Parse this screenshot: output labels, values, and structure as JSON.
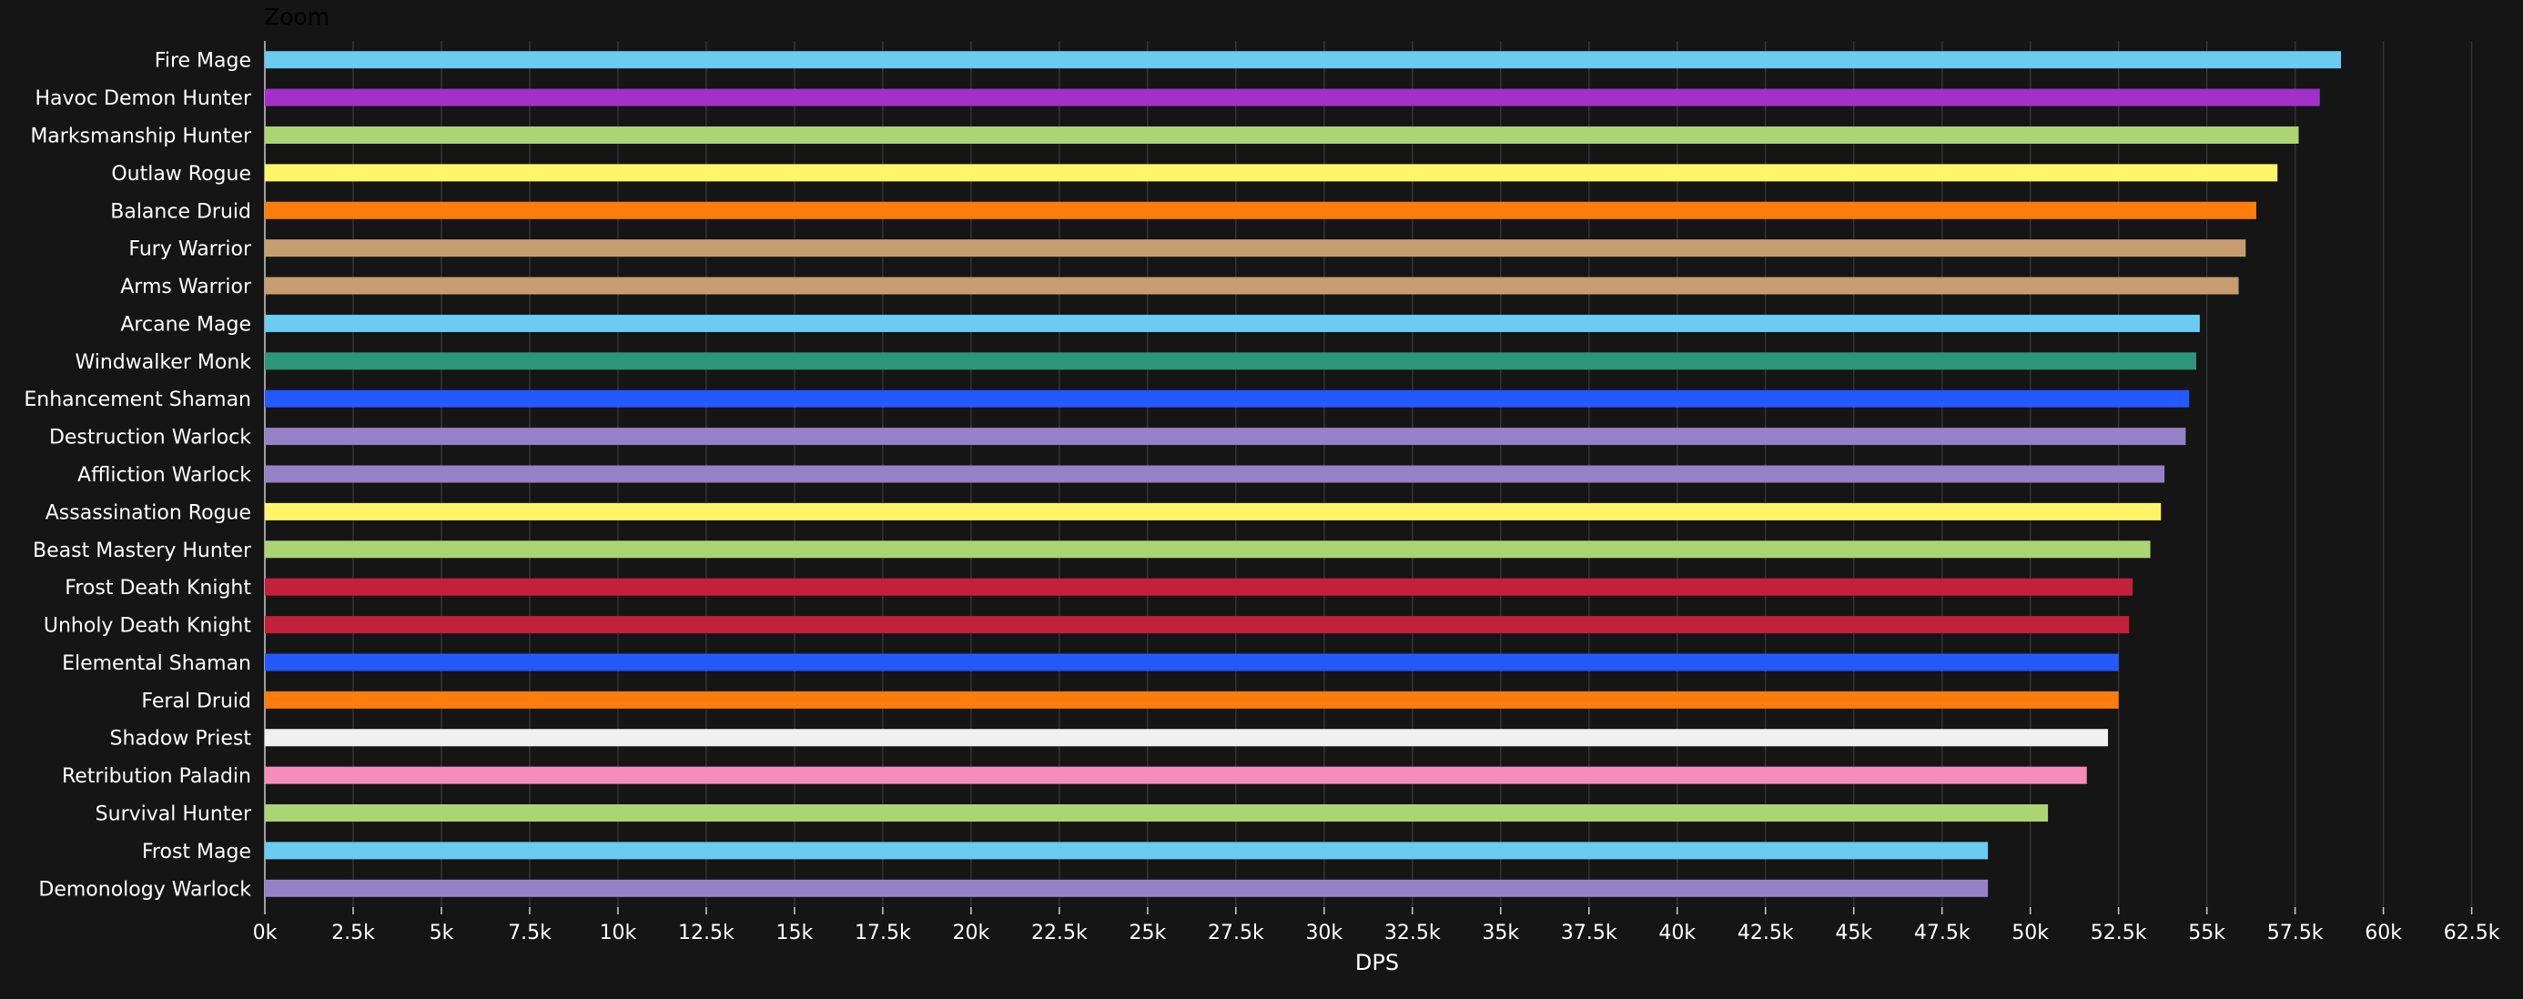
{
  "zoom_button": {
    "label": "Zoom"
  },
  "chart_data": {
    "type": "bar",
    "orientation": "horizontal",
    "xlabel": "DPS",
    "xlim": [
      0,
      63000
    ],
    "tick_step": 2500,
    "tick_labels": [
      "0k",
      "2.5k",
      "5k",
      "7.5k",
      "10k",
      "12.5k",
      "15k",
      "17.5k",
      "20k",
      "22.5k",
      "25k",
      "27.5k",
      "30k",
      "32.5k",
      "35k",
      "37.5k",
      "40k",
      "42.5k",
      "45k",
      "47.5k",
      "50k",
      "52.5k",
      "55k",
      "57.5k",
      "60k",
      "62.5k"
    ],
    "grid": true,
    "categories": [
      "Fire Mage",
      "Havoc Demon Hunter",
      "Marksmanship Hunter",
      "Outlaw Rogue",
      "Balance Druid",
      "Fury Warrior",
      "Arms Warrior",
      "Arcane Mage",
      "Windwalker Monk",
      "Enhancement Shaman",
      "Destruction Warlock",
      "Affliction Warlock",
      "Assassination Rogue",
      "Beast Mastery Hunter",
      "Frost Death Knight",
      "Unholy Death Knight",
      "Elemental Shaman",
      "Feral Druid",
      "Shadow Priest",
      "Retribution Paladin",
      "Survival Hunter",
      "Frost Mage",
      "Demonology Warlock"
    ],
    "values": [
      58800,
      58200,
      57600,
      57000,
      56400,
      56100,
      55900,
      54800,
      54700,
      54500,
      54400,
      53800,
      53700,
      53400,
      52900,
      52800,
      52500,
      52500,
      52200,
      51600,
      50500,
      48800,
      48800
    ],
    "colors": [
      "#69ccf0",
      "#a330c9",
      "#abd473",
      "#fff569",
      "#ff7d0a",
      "#c79c6e",
      "#c79c6e",
      "#69ccf0",
      "#2e9678",
      "#2459ff",
      "#9482c9",
      "#9482c9",
      "#fff569",
      "#abd473",
      "#c41f3b",
      "#c41f3b",
      "#2459ff",
      "#ff7d0a",
      "#f0f0f0",
      "#f58cba",
      "#abd473",
      "#69ccf0",
      "#9482c9"
    ]
  }
}
